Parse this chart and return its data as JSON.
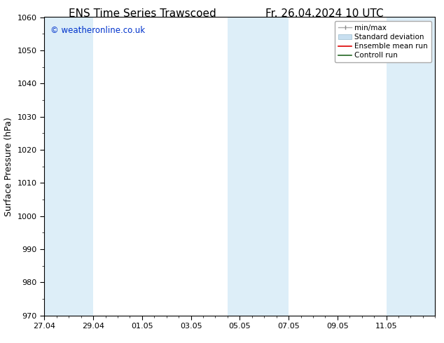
{
  "title_left": "ENS Time Series Trawscoed",
  "title_right": "Fr. 26.04.2024 10 UTC",
  "ylabel": "Surface Pressure (hPa)",
  "ylim": [
    970,
    1060
  ],
  "yticks": [
    970,
    980,
    990,
    1000,
    1010,
    1020,
    1030,
    1040,
    1050,
    1060
  ],
  "x_tick_labels": [
    "27.04",
    "29.04",
    "01.05",
    "03.05",
    "05.05",
    "07.05",
    "09.05",
    "11.05"
  ],
  "x_tick_positions": [
    0,
    2,
    4,
    6,
    8,
    10,
    12,
    14
  ],
  "x_min": 0,
  "x_max": 16,
  "shaded_bands": [
    {
      "x_start": 0,
      "x_end": 2
    },
    {
      "x_start": 7.5,
      "x_end": 10
    },
    {
      "x_start": 14,
      "x_end": 16
    }
  ],
  "shaded_color": "#ddeef8",
  "background_color": "#ffffff",
  "watermark_text": "© weatheronline.co.uk",
  "watermark_color": "#0033cc",
  "tick_fontsize": 8,
  "label_fontsize": 9,
  "title_fontsize": 11
}
